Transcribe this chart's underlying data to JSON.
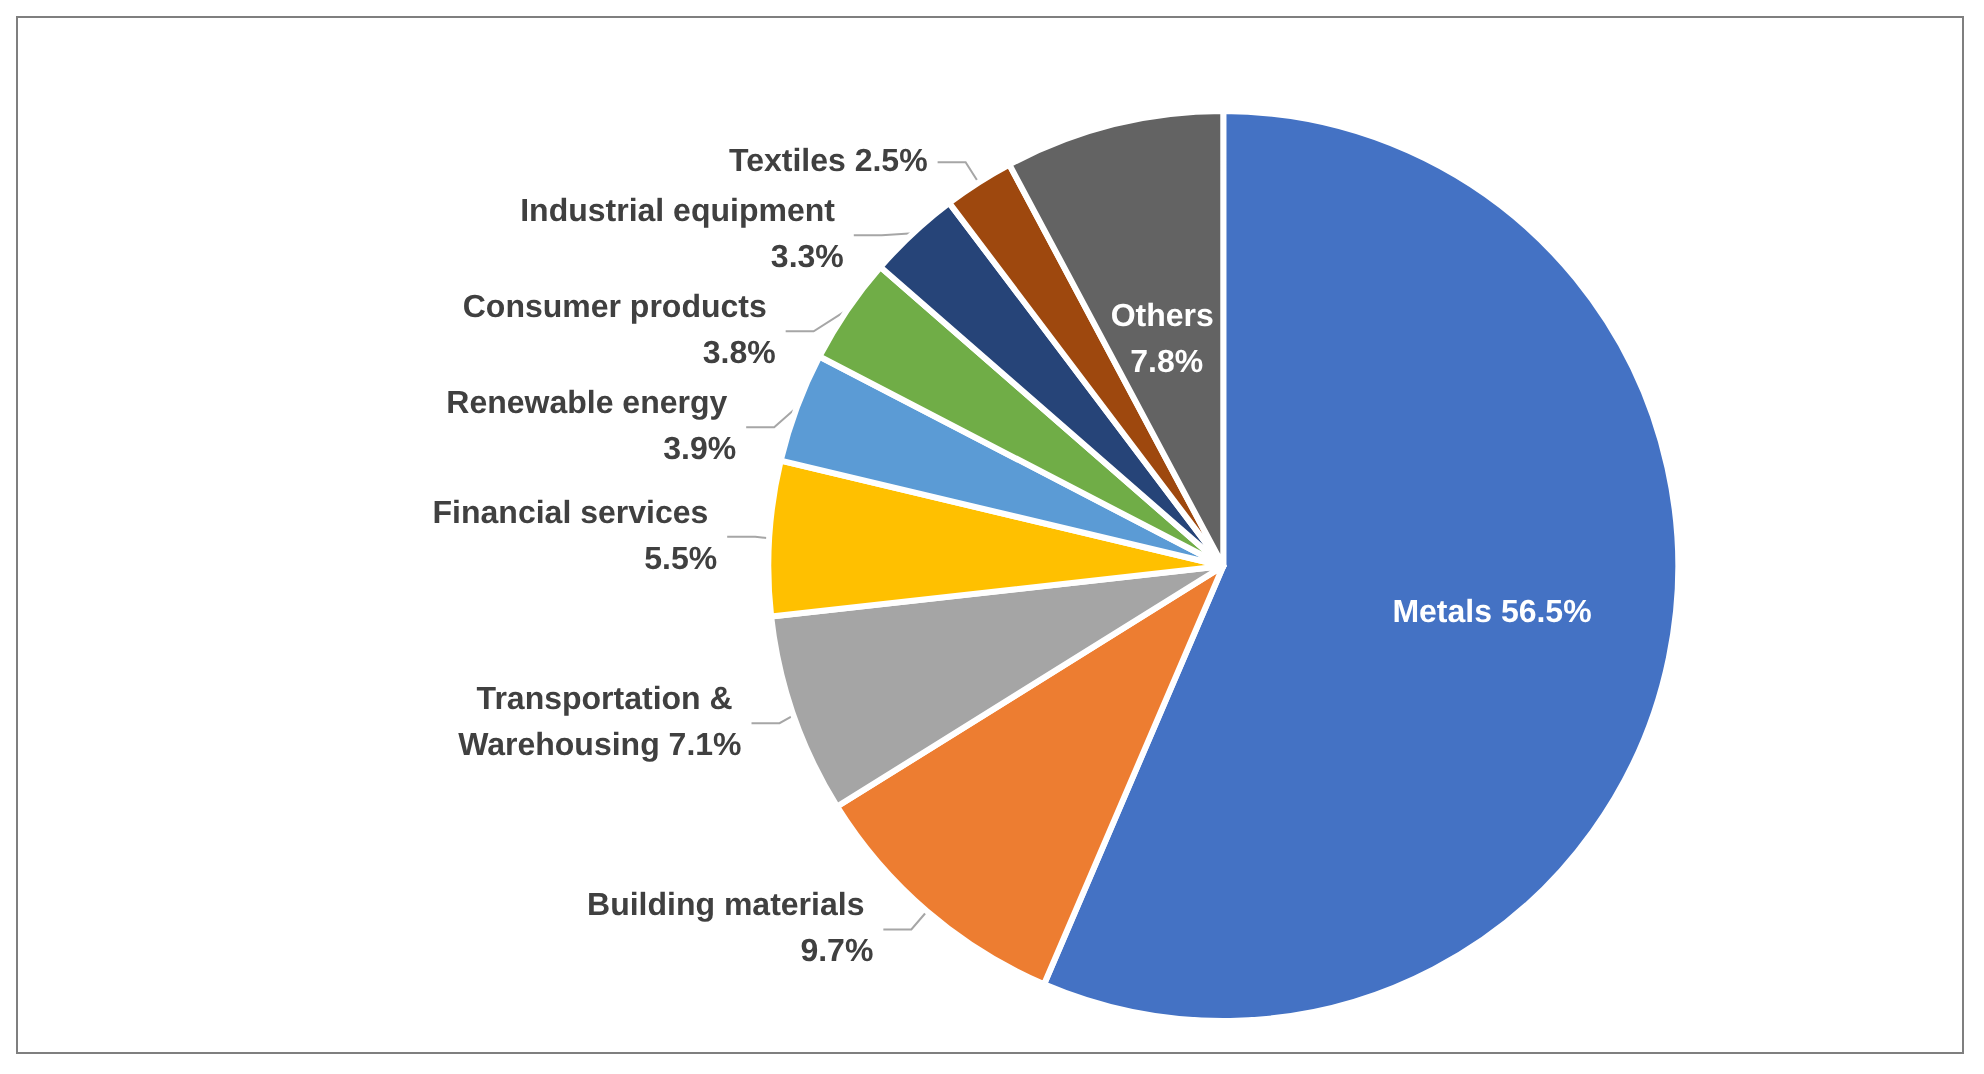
{
  "chart_data": {
    "type": "pie",
    "categories": [
      "Metals",
      "Building materials",
      "Transportation & Warehousing",
      "Financial services",
      "Renewable energy",
      "Consumer products",
      "Industrial equipment",
      "Textiles",
      "Others"
    ],
    "values": [
      56.5,
      9.7,
      7.1,
      5.5,
      3.9,
      3.8,
      3.3,
      2.5,
      7.8
    ],
    "colors": [
      "#4472c4",
      "#ed7d31",
      "#a5a5a5",
      "#ffc000",
      "#5b9bd5",
      "#70ad47",
      "#264478",
      "#9e480e",
      "#636363"
    ],
    "value_labels": [
      "56.5%",
      "9.7%",
      "7.1%",
      "5.5%",
      "3.9%",
      "3.8%",
      "3.3%",
      "2.5%",
      "7.8%"
    ]
  }
}
